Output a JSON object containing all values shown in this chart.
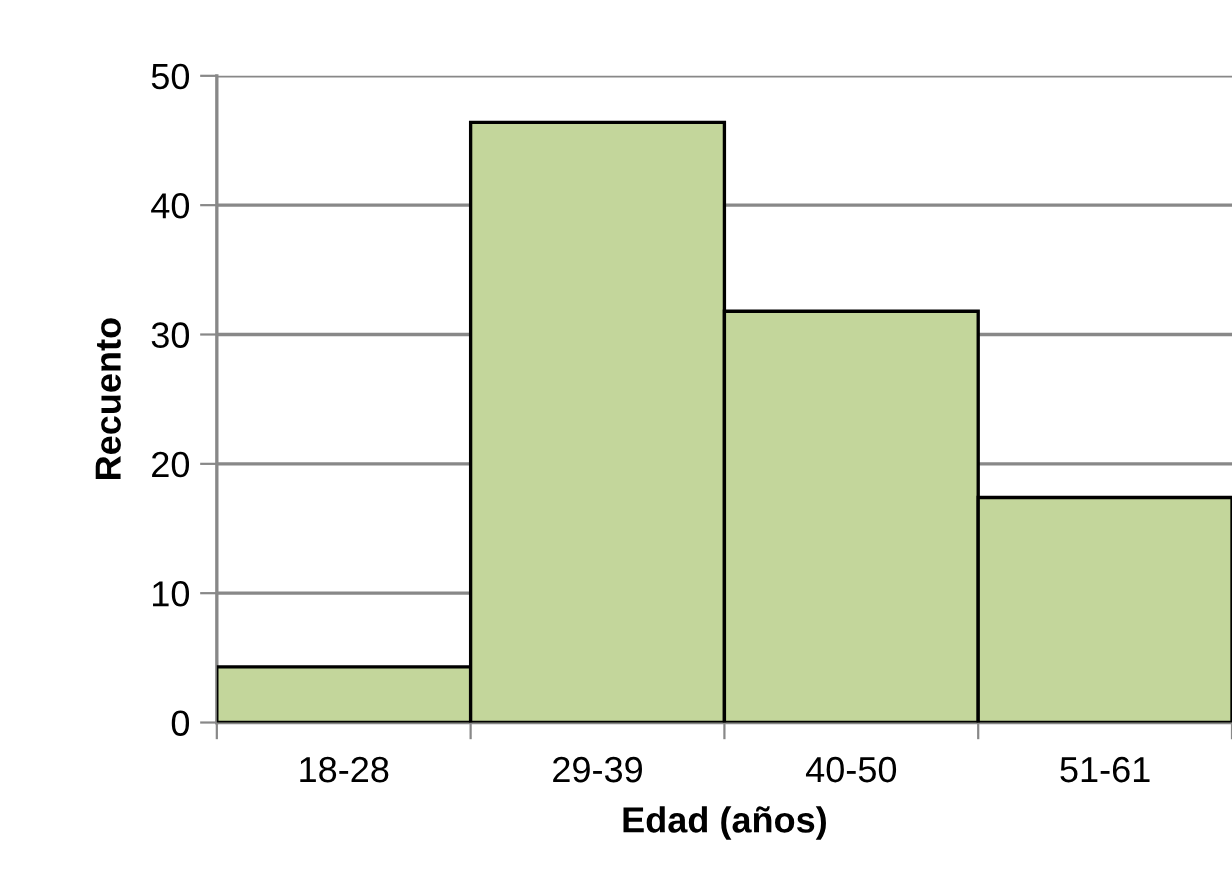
{
  "chart_data": {
    "type": "bar",
    "xlabel": "Edad (años)",
    "ylabel": "Recuento",
    "categories": [
      "18-28",
      "29-39",
      "40-50",
      "51-61"
    ],
    "values": [
      4.3,
      46.4,
      31.8,
      17.4
    ],
    "color": "#c3d69b",
    "ylim": [
      0,
      50
    ],
    "yticks": [
      0,
      10,
      20,
      30,
      40,
      50
    ],
    "grid": "y"
  }
}
